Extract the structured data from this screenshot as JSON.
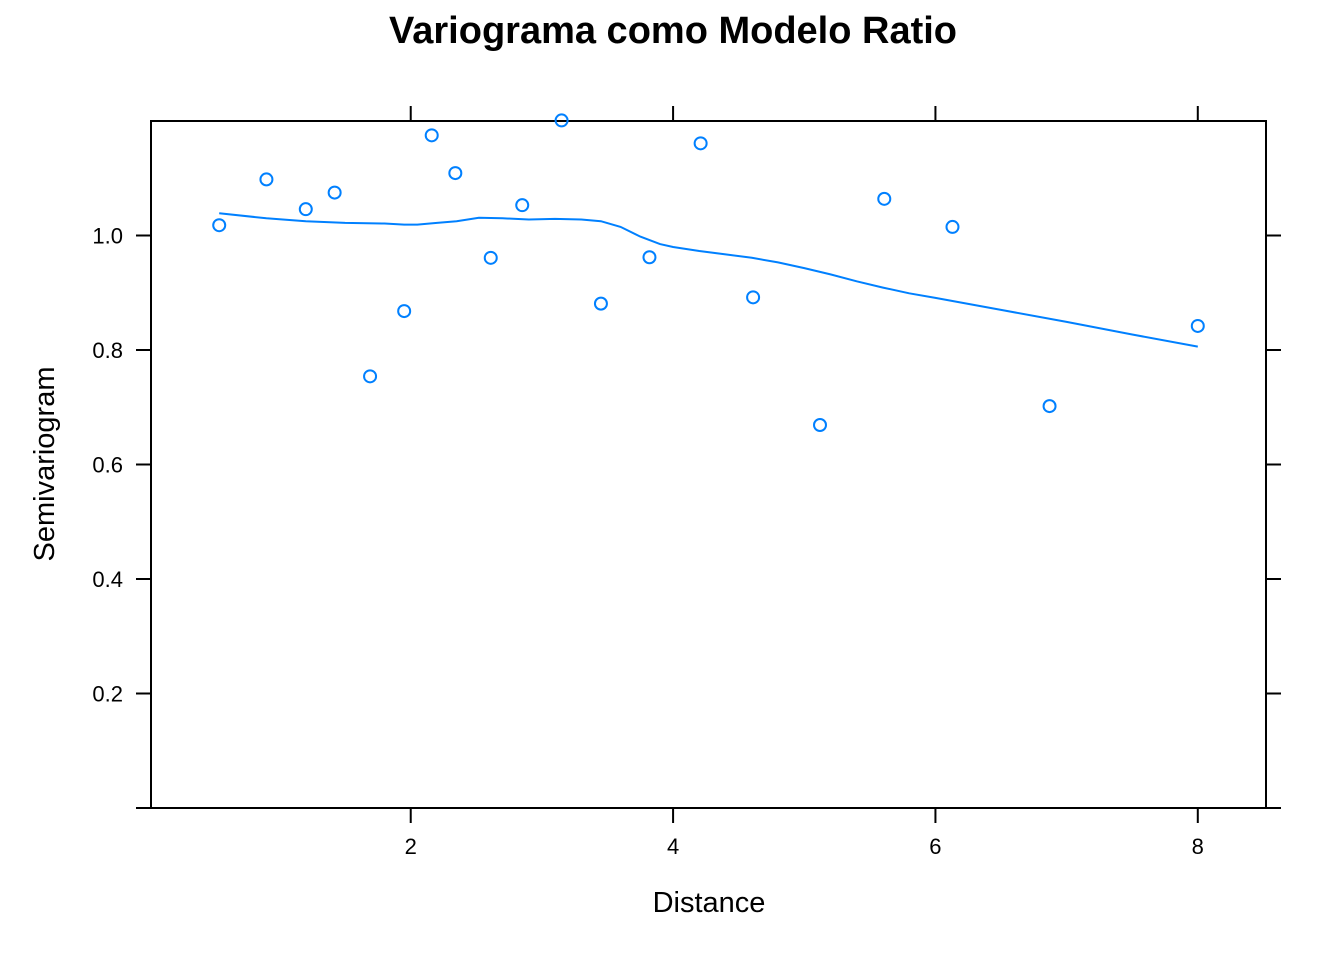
{
  "chart_data": {
    "type": "scatter",
    "title": "Variograma como Modelo Ratio",
    "xlabel": "Distance",
    "ylabel": "Semivariogram",
    "xlim": [
      0.02,
      8.52
    ],
    "ylim": [
      0.0,
      1.2
    ],
    "xticks": [
      2,
      4,
      6,
      8
    ],
    "yticks": [
      0.2,
      0.4,
      0.6,
      0.8,
      1.0
    ],
    "xtick_labels": [
      "2",
      "4",
      "6",
      "8"
    ],
    "ytick_labels": [
      "0.2",
      "0.4",
      "0.6",
      "0.8",
      "1.0"
    ],
    "grid": false,
    "color": "#0080ff",
    "series": [
      {
        "kind": "points",
        "x": [
          0.54,
          0.9,
          1.2,
          1.42,
          1.69,
          1.95,
          2.16,
          2.34,
          2.61,
          2.85,
          3.15,
          3.45,
          3.82,
          4.21,
          4.61,
          5.12,
          5.61,
          6.13,
          6.87,
          8.0
        ],
        "y": [
          1.018,
          1.098,
          1.046,
          1.075,
          0.754,
          0.868,
          1.175,
          1.109,
          0.961,
          1.053,
          1.201,
          0.881,
          0.962,
          1.161,
          0.892,
          0.669,
          1.064,
          1.015,
          0.702,
          0.842
        ]
      },
      {
        "kind": "line",
        "x": [
          0.54,
          0.9,
          1.2,
          1.5,
          1.8,
          1.95,
          2.05,
          2.2,
          2.35,
          2.52,
          2.7,
          2.9,
          3.1,
          3.3,
          3.45,
          3.6,
          3.75,
          3.9,
          4.0,
          4.2,
          4.4,
          4.6,
          4.8,
          5.0,
          5.2,
          5.4,
          5.6,
          5.8,
          6.0,
          6.5,
          7.0,
          7.5,
          8.0
        ],
        "y": [
          1.039,
          1.03,
          1.025,
          1.022,
          1.021,
          1.019,
          1.019,
          1.022,
          1.025,
          1.031,
          1.03,
          1.028,
          1.029,
          1.028,
          1.025,
          1.015,
          0.998,
          0.985,
          0.98,
          0.973,
          0.967,
          0.961,
          0.953,
          0.943,
          0.932,
          0.92,
          0.909,
          0.899,
          0.891,
          0.87,
          0.849,
          0.827,
          0.806
        ]
      }
    ]
  }
}
